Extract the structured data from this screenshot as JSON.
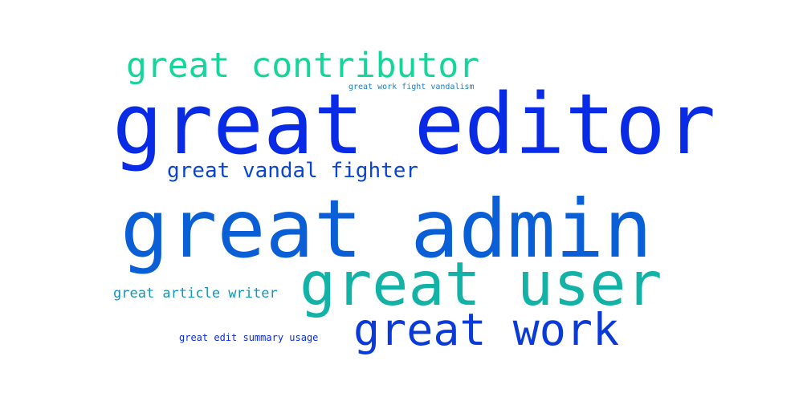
{
  "word_cloud": {
    "words": [
      {
        "id": "editor",
        "text": "great editor",
        "color": "#0a2be6"
      },
      {
        "id": "admin",
        "text": "great admin",
        "color": "#0a5fd6"
      },
      {
        "id": "user",
        "text": "great user",
        "color": "#12b3a6"
      },
      {
        "id": "work",
        "text": "great work",
        "color": "#0a3ad8"
      },
      {
        "id": "contributor",
        "text": "great contributor",
        "color": "#14d69a"
      },
      {
        "id": "vandal",
        "text": "great vandal fighter",
        "color": "#0a44d2"
      },
      {
        "id": "article",
        "text": "great article writer",
        "color": "#1496b8"
      },
      {
        "id": "summary",
        "text": "great edit summary usage",
        "color": "#0a2ce0"
      },
      {
        "id": "fight",
        "text": "great work fight vandalism",
        "color": "#1a80c8"
      }
    ]
  }
}
